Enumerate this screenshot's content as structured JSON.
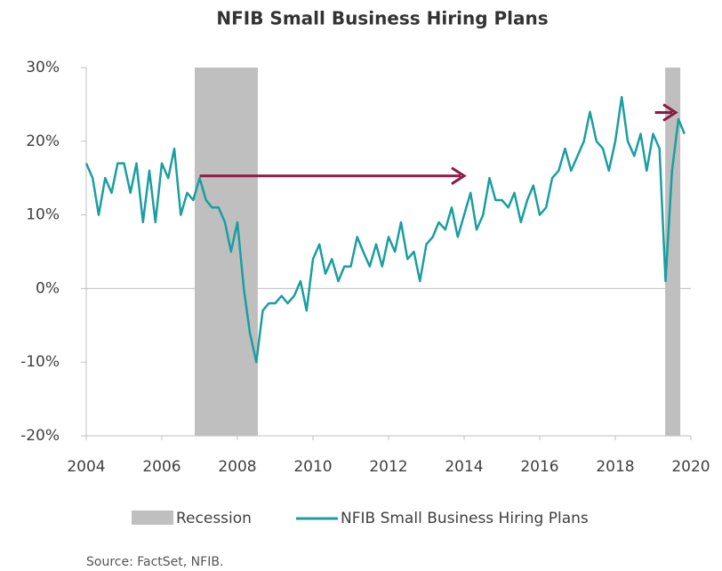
{
  "chart_data": {
    "type": "line",
    "title": "NFIB Small Business Hiring Plans",
    "source": "Source: FactSet, NFIB.",
    "x": [
      2004,
      2004.17,
      2004.33,
      2004.5,
      2004.67,
      2004.83,
      2005,
      2005.17,
      2005.33,
      2005.5,
      2005.67,
      2005.83,
      2006,
      2006.17,
      2006.33,
      2006.5,
      2006.67,
      2006.83,
      2007,
      2007.17,
      2007.33,
      2007.5,
      2007.67,
      2007.83,
      2008,
      2008.17,
      2008.33,
      2008.5,
      2008.67,
      2008.83,
      2009,
      2009.17,
      2009.33,
      2009.5,
      2009.67,
      2009.83,
      2010,
      2010.17,
      2010.33,
      2010.5,
      2010.67,
      2010.83,
      2011,
      2011.17,
      2011.33,
      2011.5,
      2011.67,
      2011.83,
      2012,
      2012.17,
      2012.33,
      2012.5,
      2012.67,
      2012.83,
      2013,
      2013.17,
      2013.33,
      2013.5,
      2013.67,
      2013.83,
      2014,
      2014.17,
      2014.33,
      2014.5,
      2014.67,
      2014.83,
      2015,
      2015.17,
      2015.33,
      2015.5,
      2015.67,
      2015.83,
      2016,
      2016.17,
      2016.33,
      2016.5,
      2016.67,
      2016.83,
      2017,
      2017.17,
      2017.33,
      2017.5,
      2017.67,
      2017.83,
      2018,
      2018.17,
      2018.33,
      2018.5,
      2018.67,
      2018.83,
      2019,
      2019.17,
      2019.33,
      2019.5,
      2019.67,
      2019.83
    ],
    "series": [
      {
        "name": "NFIB Small Business Hiring Plans",
        "color": "#1a9ea0",
        "values": [
          17,
          15,
          10,
          15,
          13,
          17,
          17,
          13,
          17,
          9,
          16,
          9,
          17,
          15,
          19,
          10,
          13,
          12,
          15,
          12,
          11,
          11,
          9,
          5,
          9,
          0,
          -6,
          -10,
          -3,
          -2,
          -2,
          -1,
          -2,
          -1,
          1,
          -3,
          4,
          6,
          2,
          4,
          1,
          3,
          3,
          7,
          5,
          3,
          6,
          3,
          7,
          5,
          9,
          4,
          5,
          1,
          6,
          7,
          9,
          8,
          11,
          7,
          10,
          13,
          8,
          10,
          15,
          12,
          12,
          11,
          13,
          9,
          12,
          14,
          10,
          11,
          15,
          16,
          19,
          16,
          18,
          20,
          24,
          20,
          19,
          16,
          20,
          26,
          20,
          18,
          21,
          16,
          21,
          19,
          1,
          16,
          23,
          21
        ]
      }
    ],
    "bands": {
      "name": "Recession",
      "color": "#bfbfbf",
      "ranges": [
        [
          2006.87,
          2008.54
        ],
        [
          2019.32,
          2019.72
        ]
      ]
    },
    "arrows": [
      {
        "x": [
          2007.0,
          2014.0
        ],
        "y": [
          15.3,
          15.3
        ],
        "color": "#8b1a45"
      },
      {
        "x": [
          2019.05,
          2019.6
        ],
        "y": [
          23.9,
          23.9
        ],
        "color": "#8b1a45"
      }
    ],
    "xlim": [
      2004,
      2020
    ],
    "xticks": [
      2004,
      2006,
      2008,
      2010,
      2012,
      2014,
      2016,
      2018,
      2020
    ],
    "ylim": [
      -20,
      30
    ],
    "yticks": [
      {
        "value": -20,
        "label": "-20%"
      },
      {
        "value": -10,
        "label": "-10%"
      },
      {
        "value": 0,
        "label": "0%"
      },
      {
        "value": 10,
        "label": "10%"
      },
      {
        "value": 20,
        "label": "20%"
      },
      {
        "value": 30,
        "label": "30%"
      }
    ]
  }
}
